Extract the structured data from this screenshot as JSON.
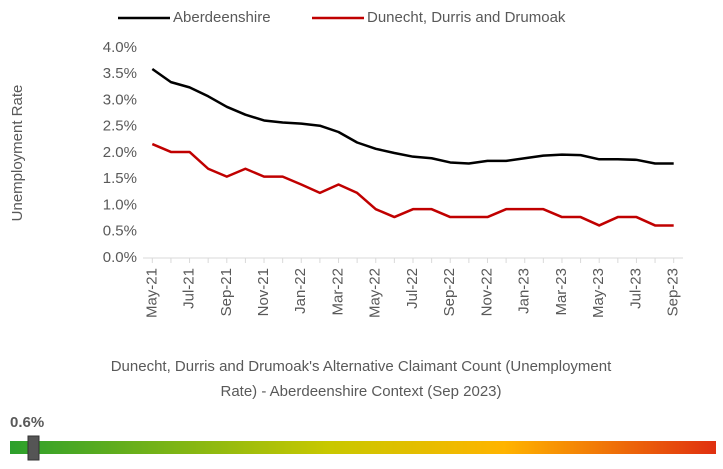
{
  "chart_data": {
    "type": "line",
    "y_axis_label": "Unemployment Rate",
    "categories": [
      "May-21",
      null,
      "Jul-21",
      null,
      "Sep-21",
      null,
      "Nov-21",
      null,
      "Jan-22",
      null,
      "Mar-22",
      null,
      "May-22",
      null,
      "Jul-22",
      null,
      "Sep-22",
      null,
      "Nov-22",
      null,
      "Jan-23",
      null,
      "Mar-23",
      null,
      "May-23",
      null,
      "Jul-23",
      null,
      "Sep-23"
    ],
    "series": [
      {
        "name": "Aberdeenshire",
        "color": "#000000",
        "values": [
          3.6,
          3.35,
          3.25,
          3.08,
          2.88,
          2.73,
          2.62,
          2.58,
          2.56,
          2.52,
          2.4,
          2.2,
          2.08,
          2.0,
          1.93,
          1.9,
          1.82,
          1.8,
          1.85,
          1.85,
          1.9,
          1.95,
          1.97,
          1.96,
          1.88,
          1.88,
          1.87,
          1.8,
          1.8
        ]
      },
      {
        "name": "Dunecht, Durris and Drumoak",
        "color": "#c00000",
        "values": [
          2.17,
          2.02,
          2.02,
          1.7,
          1.55,
          1.7,
          1.55,
          1.55,
          1.4,
          1.24,
          1.4,
          1.24,
          0.93,
          0.78,
          0.93,
          0.93,
          0.78,
          0.78,
          0.78,
          0.93,
          0.93,
          0.93,
          0.78,
          0.78,
          0.62,
          0.78,
          0.78,
          0.62,
          0.62
        ]
      }
    ],
    "ylim": [
      0,
      4
    ],
    "yticks": [
      {
        "value": 0,
        "label": "0.0%"
      },
      {
        "value": 0.5,
        "label": "0.5%"
      },
      {
        "value": 1,
        "label": "1.0%"
      },
      {
        "value": 1.5,
        "label": "1.5%"
      },
      {
        "value": 2,
        "label": "2.0%"
      },
      {
        "value": 2.5,
        "label": "2.5%"
      },
      {
        "value": 3,
        "label": "3.0%"
      },
      {
        "value": 3.5,
        "label": "3.5%"
      },
      {
        "value": 4,
        "label": "4.0%"
      }
    ],
    "grid": false,
    "legend": "top"
  },
  "caption_lines": [
    "Dunecht, Durris and Drumoak's Alternative Claimant Count (Unemployment",
    "Rate) - Aberdeenshire Context (Sep 2023)"
  ],
  "indicator": {
    "label": "0.6%"
  }
}
